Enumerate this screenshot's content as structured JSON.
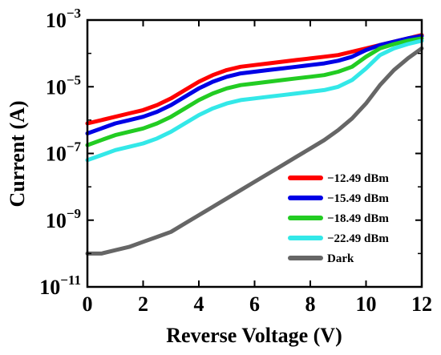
{
  "chart_data": {
    "type": "line",
    "title": "",
    "xlabel": "Reverse Voltage (V)",
    "ylabel": "Current (A)",
    "xlim": [
      0,
      12
    ],
    "ylim_log10": [
      -11,
      -3
    ],
    "yscale": "log",
    "grid": false,
    "legend_position": "bottom-right",
    "x_ticks": [
      {
        "value": 0,
        "label": "0"
      },
      {
        "value": 2,
        "label": "2"
      },
      {
        "value": 4,
        "label": "4"
      },
      {
        "value": 6,
        "label": "6"
      },
      {
        "value": 8,
        "label": "8"
      },
      {
        "value": 10,
        "label": "10"
      },
      {
        "value": 12,
        "label": "12"
      }
    ],
    "y_ticks": [
      {
        "exp": -3,
        "base": "10",
        "sup": "−3"
      },
      {
        "exp": -5,
        "base": "10",
        "sup": "−5"
      },
      {
        "exp": -7,
        "base": "10",
        "sup": "−7"
      },
      {
        "exp": -9,
        "base": "10",
        "sup": "−9"
      },
      {
        "exp": -11,
        "base": "10",
        "sup": "−11"
      }
    ],
    "x": [
      0,
      0.5,
      1,
      1.5,
      2,
      2.5,
      3,
      3.5,
      4,
      4.5,
      5,
      5.5,
      6,
      6.5,
      7,
      7.5,
      8,
      8.5,
      9,
      9.5,
      10,
      10.5,
      11,
      11.5,
      12
    ],
    "series": [
      {
        "name": "−12.49 dBm",
        "color": "#ff0000",
        "log10_current": [
          -6.1,
          -6.0,
          -5.9,
          -5.8,
          -5.7,
          -5.55,
          -5.35,
          -5.1,
          -4.85,
          -4.65,
          -4.5,
          -4.4,
          -4.35,
          -4.3,
          -4.25,
          -4.2,
          -4.15,
          -4.1,
          -4.05,
          -3.95,
          -3.85,
          -3.75,
          -3.65,
          -3.55,
          -3.45
        ]
      },
      {
        "name": "−15.49 dBm",
        "color": "#0000e6",
        "log10_current": [
          -6.4,
          -6.25,
          -6.1,
          -6.0,
          -5.9,
          -5.75,
          -5.55,
          -5.3,
          -5.05,
          -4.85,
          -4.7,
          -4.6,
          -4.55,
          -4.5,
          -4.45,
          -4.4,
          -4.35,
          -4.3,
          -4.22,
          -4.1,
          -3.9,
          -3.75,
          -3.65,
          -3.55,
          -3.48
        ]
      },
      {
        "name": "−18.49 dBm",
        "color": "#22cc22",
        "log10_current": [
          -6.75,
          -6.6,
          -6.45,
          -6.35,
          -6.25,
          -6.1,
          -5.9,
          -5.65,
          -5.4,
          -5.2,
          -5.05,
          -4.95,
          -4.9,
          -4.85,
          -4.8,
          -4.75,
          -4.7,
          -4.65,
          -4.55,
          -4.4,
          -4.1,
          -3.85,
          -3.72,
          -3.62,
          -3.55
        ]
      },
      {
        "name": "−22.49 dBm",
        "color": "#33e8e8",
        "log10_current": [
          -7.2,
          -7.05,
          -6.9,
          -6.8,
          -6.7,
          -6.55,
          -6.35,
          -6.1,
          -5.85,
          -5.65,
          -5.5,
          -5.4,
          -5.35,
          -5.3,
          -5.25,
          -5.2,
          -5.15,
          -5.1,
          -5.0,
          -4.8,
          -4.45,
          -4.05,
          -3.85,
          -3.72,
          -3.62
        ]
      },
      {
        "name": "Dark",
        "color": "#666666",
        "log10_current": [
          -10.0,
          -10.0,
          -9.9,
          -9.8,
          -9.65,
          -9.5,
          -9.35,
          -9.1,
          -8.85,
          -8.6,
          -8.35,
          -8.1,
          -7.85,
          -7.6,
          -7.35,
          -7.1,
          -6.85,
          -6.6,
          -6.3,
          -5.95,
          -5.5,
          -4.95,
          -4.5,
          -4.15,
          -3.85
        ]
      }
    ]
  }
}
